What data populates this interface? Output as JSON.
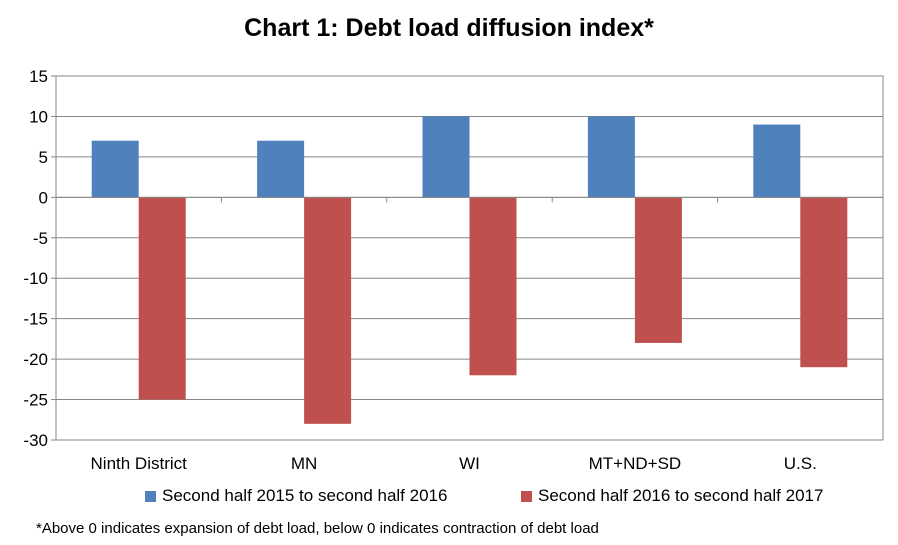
{
  "chart_data": {
    "type": "bar",
    "title": "Chart 1: Debt load diffusion index*",
    "categories": [
      "Ninth District",
      "MN",
      "WI",
      "MT+ND+SD",
      "U.S."
    ],
    "series": [
      {
        "name": "Second half 2015 to second half 2016",
        "color": "#4f81bd",
        "values": [
          7,
          7,
          10,
          10,
          9
        ]
      },
      {
        "name": "Second half 2016 to second half 2017",
        "color": "#c0504d",
        "values": [
          -25,
          -28,
          -22,
          -18,
          -21
        ]
      }
    ],
    "ylim": [
      -30,
      15
    ],
    "yticks": [
      15,
      10,
      5,
      0,
      -5,
      -10,
      -15,
      -20,
      -25,
      -30
    ],
    "grid": true,
    "legend_position": "bottom",
    "xlabel": "",
    "ylabel": ""
  },
  "footnote": "*Above 0 indicates expansion of debt load, below 0 indicates contraction of debt load"
}
